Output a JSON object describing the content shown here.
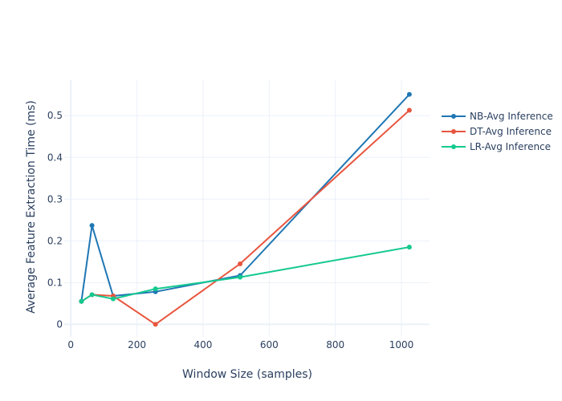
{
  "chart_data": {
    "type": "line",
    "title": "",
    "xlabel": "Window Size (samples)",
    "ylabel": "Average Feature Extraction Time (ms)",
    "xlim": [
      -20,
      1085
    ],
    "ylim": [
      -0.03,
      0.585
    ],
    "x_ticks": [
      0,
      200,
      400,
      600,
      800,
      1000
    ],
    "y_ticks": [
      0,
      0.1,
      0.2,
      0.3,
      0.4,
      0.5
    ],
    "x_tick_labels": [
      "0",
      "200",
      "400",
      "600",
      "800",
      "1000"
    ],
    "y_tick_labels": [
      "0",
      "0.1",
      "0.2",
      "0.3",
      "0.4",
      "0.5"
    ],
    "grid": true,
    "legend_position": "right",
    "x": [
      32,
      64,
      128,
      256,
      512,
      1024
    ],
    "series": [
      {
        "name": "NB-Avg Inference",
        "color": "#1f77b4",
        "values": [
          0.055,
          0.237,
          0.068,
          0.078,
          0.117,
          0.551
        ]
      },
      {
        "name": "DT-Avg Inference",
        "color": "#e8553e",
        "values": [
          0.055,
          0.071,
          0.068,
          0.0,
          0.145,
          0.513
        ]
      },
      {
        "name": "LR-Avg Inference",
        "color": "#14c98f",
        "values": [
          0.055,
          0.071,
          0.061,
          0.085,
          0.113,
          0.185
        ]
      }
    ]
  }
}
